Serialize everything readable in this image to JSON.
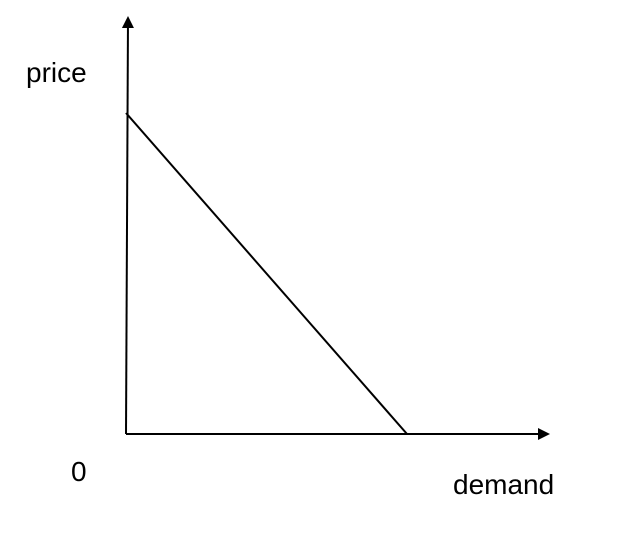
{
  "chart_data": {
    "type": "line",
    "title": "",
    "xlabel": "demand",
    "ylabel": "price",
    "origin_label": "0",
    "grid": false,
    "legend": "none",
    "axes_color": "#000000",
    "series": [
      {
        "color": "#000000",
        "points": [
          {
            "x": 0,
            "y": 1
          },
          {
            "x": 1,
            "y": 0
          }
        ]
      }
    ]
  }
}
